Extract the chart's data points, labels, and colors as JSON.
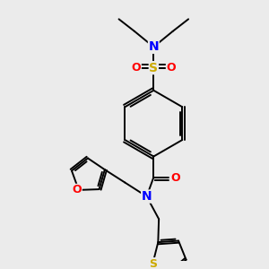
{
  "background_color": "#ebebeb",
  "bond_color": "#000000",
  "atom_colors": {
    "N": "#0000ff",
    "O": "#ff0000",
    "S": "#ccaa00",
    "C": "#000000"
  },
  "figsize": [
    3.0,
    3.0
  ],
  "dpi": 100
}
